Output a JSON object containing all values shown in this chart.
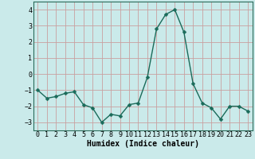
{
  "x": [
    0,
    1,
    2,
    3,
    4,
    5,
    6,
    7,
    8,
    9,
    10,
    11,
    12,
    13,
    14,
    15,
    16,
    17,
    18,
    19,
    20,
    21,
    22,
    23
  ],
  "y": [
    -1.0,
    -1.5,
    -1.4,
    -1.2,
    -1.1,
    -1.9,
    -2.1,
    -3.0,
    -2.5,
    -2.6,
    -1.9,
    -1.8,
    -0.2,
    2.8,
    3.7,
    4.0,
    2.6,
    -0.6,
    -1.8,
    -2.1,
    -2.8,
    -2.0,
    -2.0,
    -2.3
  ],
  "line_color": "#1a6b5a",
  "marker": "D",
  "marker_size": 2.5,
  "line_width": 1.0,
  "bg_color": "#caeaea",
  "grid_color": "#c9a0a0",
  "xlabel": "Humidex (Indice chaleur)",
  "xlabel_fontsize": 7,
  "tick_fontsize": 6,
  "xlim": [
    -0.5,
    23.5
  ],
  "ylim": [
    -3.5,
    4.5
  ],
  "yticks": [
    -3,
    -2,
    -1,
    0,
    1,
    2,
    3,
    4
  ],
  "xticks": [
    0,
    1,
    2,
    3,
    4,
    5,
    6,
    7,
    8,
    9,
    10,
    11,
    12,
    13,
    14,
    15,
    16,
    17,
    18,
    19,
    20,
    21,
    22,
    23
  ]
}
